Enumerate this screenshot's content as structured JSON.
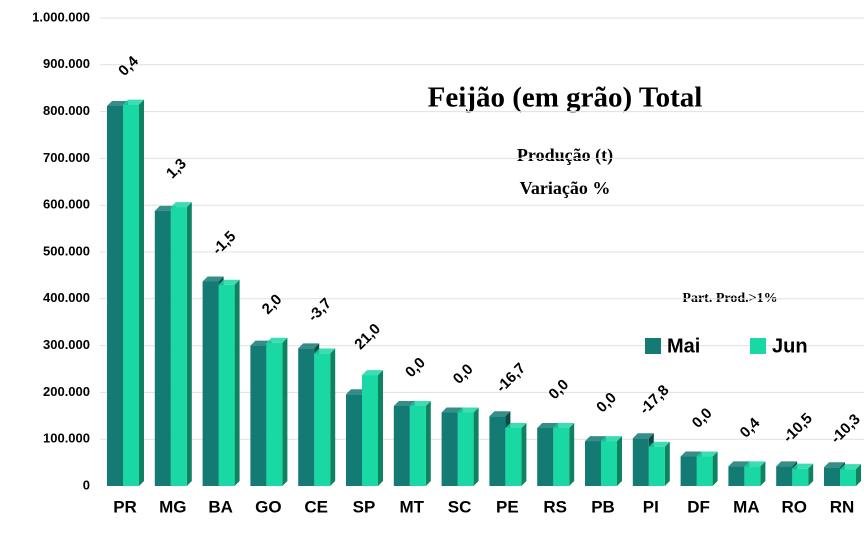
{
  "chart_data": {
    "type": "bar",
    "title": "Feijão (em grão) Total",
    "subtitle": [
      "Produção (t)",
      "Variação %"
    ],
    "legend_title": "Part. Prod.>1%",
    "categories": [
      "PR",
      "MG",
      "BA",
      "GO",
      "CE",
      "SP",
      "MT",
      "SC",
      "PE",
      "RS",
      "PB",
      "PI",
      "DF",
      "MA",
      "RO",
      "RN"
    ],
    "series": [
      {
        "name": "Mai",
        "color": "#137a74",
        "values": [
          812000,
          588000,
          437000,
          300000,
          294000,
          196000,
          171000,
          157000,
          149000,
          124000,
          96000,
          102000,
          63000,
          42000,
          42000,
          40000
        ]
      },
      {
        "name": "Jun",
        "color": "#19d8a4",
        "values": [
          815000,
          596000,
          430000,
          306000,
          283000,
          237000,
          171000,
          157000,
          124000,
          124000,
          96000,
          84000,
          63000,
          42000,
          37000,
          36000
        ]
      }
    ],
    "variation_labels": [
      "0,4",
      "1,3",
      "-1,5",
      "2,0",
      "-3,7",
      "21,0",
      "0,0",
      "0,0",
      "-16,7",
      "0,0",
      "0,0",
      "-17,8",
      "0,0",
      "0,4",
      "-10,5",
      "-10,3"
    ],
    "ylim": [
      0,
      1000000
    ],
    "yticks": [
      {
        "value": 0,
        "label": "0"
      },
      {
        "value": 100000,
        "label": "100.000"
      },
      {
        "value": 200000,
        "label": "200.000"
      },
      {
        "value": 300000,
        "label": "300.000"
      },
      {
        "value": 400000,
        "label": "400.000"
      },
      {
        "value": 500000,
        "label": "500.000"
      },
      {
        "value": 600000,
        "label": "600.000"
      },
      {
        "value": 700000,
        "label": "700.000"
      },
      {
        "value": 800000,
        "label": "800.000"
      },
      {
        "value": 900000,
        "label": "900.000"
      },
      {
        "value": 1000000,
        "label": "1.000.000"
      }
    ],
    "grid": true
  }
}
